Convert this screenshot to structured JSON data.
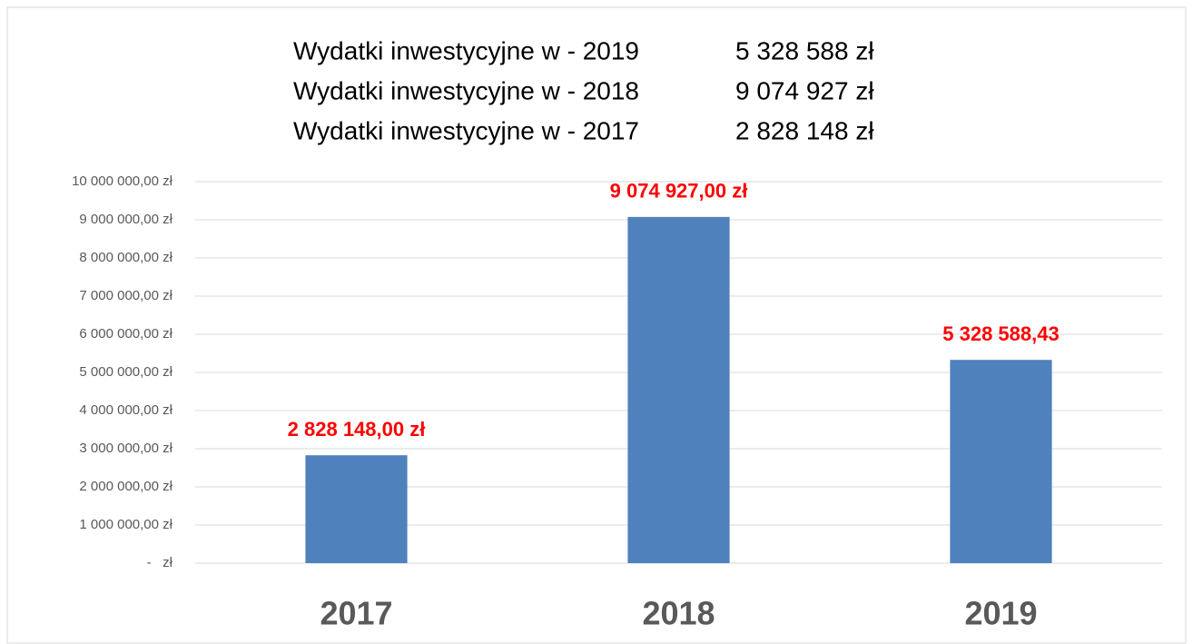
{
  "chart_data": {
    "type": "bar",
    "title_lines": [
      {
        "label": "Wydatki inwestycyjne w - 2019",
        "amount": "5 328 588 zł"
      },
      {
        "label": "Wydatki inwestycyjne w - 2018",
        "amount": "9 074 927 zł"
      },
      {
        "label": "Wydatki inwestycyjne w - 2017",
        "amount": "2 828 148 zł"
      }
    ],
    "categories": [
      "2017",
      "2018",
      "2019"
    ],
    "values": [
      2828148,
      9074927,
      5328588.43
    ],
    "value_labels": [
      "2 828 148,00 zł",
      "9 074 927,00 zł",
      "5 328 588,43"
    ],
    "color": "#4f81bd",
    "value_label_color": "#ff0000",
    "ylim": [
      0,
      10000000
    ],
    "yticks": [
      {
        "value": 0,
        "label": "-   zł"
      },
      {
        "value": 1000000,
        "label": "1 000 000,00 zł"
      },
      {
        "value": 2000000,
        "label": "2 000 000,00 zł"
      },
      {
        "value": 3000000,
        "label": "3 000 000,00 zł"
      },
      {
        "value": 4000000,
        "label": "4 000 000,00 zł"
      },
      {
        "value": 5000000,
        "label": "5 000 000,00 zł"
      },
      {
        "value": 6000000,
        "label": "6 000 000,00 zł"
      },
      {
        "value": 7000000,
        "label": "7 000 000,00 zł"
      },
      {
        "value": 8000000,
        "label": "8 000 000,00 zł"
      },
      {
        "value": 9000000,
        "label": "9 000 000,00 zł"
      },
      {
        "value": 10000000,
        "label": "10 000 000,00 zł"
      }
    ],
    "grid": true
  }
}
